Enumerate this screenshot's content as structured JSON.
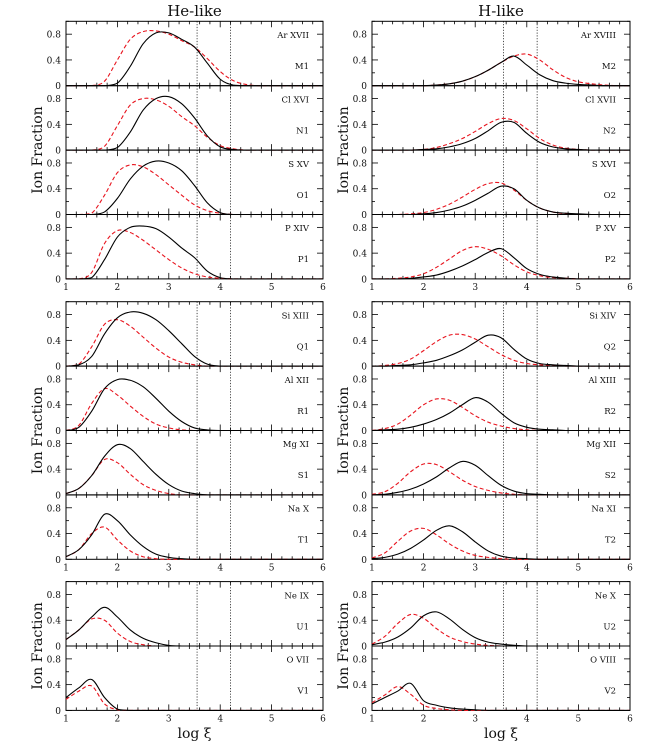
{
  "chart_data": {
    "type": "line",
    "xlabel": "log ξ",
    "ylabel": "Ion Fraction",
    "xlim": [
      1,
      6
    ],
    "ylim": [
      0,
      1
    ],
    "xticks": [
      "1",
      "2",
      "3",
      "4",
      "5",
      "6"
    ],
    "yticks": [
      "0",
      "0.4",
      "0.8"
    ],
    "vertical_dotted_lines": [
      3.55,
      4.2
    ],
    "series_styles": {
      "solid": "#000000",
      "dashed": "#e8141e"
    },
    "panel_groups": [
      4,
      4,
      2
    ],
    "x": [
      1,
      1.25,
      1.5,
      1.75,
      2,
      2.25,
      2.5,
      2.75,
      3,
      3.25,
      3.5,
      3.75,
      4,
      4.25,
      4.5,
      4.75,
      5,
      5.25,
      5.5,
      5.75,
      6
    ],
    "columns": [
      {
        "title": "He-like",
        "panels": [
          {
            "ion": "Ar XVII",
            "label": "M1",
            "solid": [
              0,
              0,
              0,
              0,
              0.04,
              0.3,
              0.65,
              0.82,
              0.82,
              0.72,
              0.6,
              0.35,
              0.1,
              0.01,
              0,
              0,
              0,
              0,
              0,
              0,
              0
            ],
            "dashed": [
              0,
              0,
              0,
              0.07,
              0.4,
              0.72,
              0.84,
              0.85,
              0.8,
              0.7,
              0.6,
              0.42,
              0.22,
              0.08,
              0.02,
              0,
              0,
              0,
              0,
              0,
              0
            ]
          },
          {
            "ion": "Cl XVI",
            "label": "N1",
            "solid": [
              0,
              0,
              0,
              0,
              0.04,
              0.28,
              0.62,
              0.8,
              0.83,
              0.72,
              0.5,
              0.22,
              0.05,
              0.01,
              0,
              0,
              0,
              0,
              0,
              0,
              0
            ],
            "dashed": [
              0,
              0,
              0,
              0.06,
              0.38,
              0.7,
              0.8,
              0.78,
              0.68,
              0.52,
              0.38,
              0.2,
              0.07,
              0.02,
              0,
              0,
              0,
              0,
              0,
              0,
              0
            ]
          },
          {
            "ion": "S XV",
            "label": "O1",
            "solid": [
              0,
              0,
              0,
              0.04,
              0.25,
              0.55,
              0.75,
              0.83,
              0.8,
              0.68,
              0.45,
              0.18,
              0.03,
              0,
              0,
              0,
              0,
              0,
              0,
              0,
              0
            ],
            "dashed": [
              0,
              0,
              0.02,
              0.3,
              0.65,
              0.77,
              0.74,
              0.62,
              0.46,
              0.3,
              0.15,
              0.06,
              0.02,
              0,
              0,
              0,
              0,
              0,
              0,
              0,
              0
            ]
          },
          {
            "ion": "P XIV",
            "label": "P1",
            "solid": [
              0,
              0,
              0.02,
              0.3,
              0.65,
              0.8,
              0.82,
              0.78,
              0.65,
              0.48,
              0.33,
              0.12,
              0.02,
              0,
              0,
              0,
              0,
              0,
              0,
              0,
              0
            ],
            "dashed": [
              0,
              0,
              0.1,
              0.55,
              0.75,
              0.72,
              0.6,
              0.45,
              0.3,
              0.17,
              0.08,
              0.03,
              0.01,
              0,
              0,
              0,
              0,
              0,
              0,
              0,
              0
            ]
          },
          {
            "ion": "Si XIII",
            "label": "Q1",
            "solid": [
              0,
              0.02,
              0.15,
              0.5,
              0.75,
              0.84,
              0.82,
              0.72,
              0.55,
              0.35,
              0.15,
              0.03,
              0,
              0,
              0,
              0,
              0,
              0,
              0,
              0,
              0
            ],
            "dashed": [
              0,
              0.03,
              0.3,
              0.65,
              0.72,
              0.62,
              0.45,
              0.28,
              0.14,
              0.06,
              0.02,
              0,
              0,
              0,
              0,
              0,
              0,
              0,
              0,
              0,
              0
            ]
          },
          {
            "ion": "Al XII",
            "label": "R1",
            "solid": [
              0,
              0.05,
              0.3,
              0.65,
              0.79,
              0.78,
              0.68,
              0.5,
              0.3,
              0.14,
              0.04,
              0.01,
              0,
              0,
              0,
              0,
              0,
              0,
              0,
              0,
              0
            ],
            "dashed": [
              0,
              0.08,
              0.42,
              0.65,
              0.55,
              0.38,
              0.22,
              0.1,
              0.04,
              0.01,
              0,
              0,
              0,
              0,
              0,
              0,
              0,
              0,
              0,
              0,
              0
            ]
          },
          {
            "ion": "Mg XI",
            "label": "S1",
            "solid": [
              0.02,
              0.1,
              0.3,
              0.6,
              0.78,
              0.72,
              0.52,
              0.32,
              0.16,
              0.06,
              0.02,
              0,
              0,
              0,
              0,
              0,
              0,
              0,
              0,
              0,
              0
            ],
            "dashed": [
              0.02,
              0.1,
              0.3,
              0.55,
              0.5,
              0.32,
              0.16,
              0.07,
              0.02,
              0,
              0,
              0,
              0,
              0,
              0,
              0,
              0,
              0,
              0,
              0,
              0
            ]
          },
          {
            "ion": "Na X",
            "label": "T1",
            "solid": [
              0.04,
              0.15,
              0.38,
              0.7,
              0.6,
              0.38,
              0.2,
              0.08,
              0.03,
              0.01,
              0,
              0,
              0,
              0,
              0,
              0,
              0,
              0,
              0,
              0,
              0
            ],
            "dashed": [
              0.04,
              0.15,
              0.4,
              0.5,
              0.3,
              0.13,
              0.04,
              0.01,
              0,
              0,
              0,
              0,
              0,
              0,
              0,
              0,
              0,
              0,
              0,
              0,
              0
            ]
          },
          {
            "ion": "Ne IX",
            "label": "U1",
            "solid": [
              0.1,
              0.25,
              0.45,
              0.6,
              0.45,
              0.25,
              0.12,
              0.05,
              0.01,
              0,
              0,
              0,
              0,
              0,
              0,
              0,
              0,
              0,
              0,
              0,
              0
            ],
            "dashed": [
              0.1,
              0.25,
              0.42,
              0.4,
              0.2,
              0.07,
              0.02,
              0,
              0,
              0,
              0,
              0,
              0,
              0,
              0,
              0,
              0,
              0,
              0,
              0,
              0
            ]
          },
          {
            "ion": "O VII",
            "label": "V1",
            "solid": [
              0.2,
              0.35,
              0.48,
              0.2,
              0.02,
              0,
              0,
              0,
              0,
              0,
              0,
              0,
              0,
              0,
              0,
              0,
              0,
              0,
              0,
              0,
              0
            ],
            "dashed": [
              0.17,
              0.3,
              0.38,
              0.1,
              0.01,
              0,
              0,
              0,
              0,
              0,
              0,
              0,
              0,
              0,
              0,
              0,
              0,
              0,
              0,
              0,
              0
            ]
          }
        ]
      },
      {
        "title": "H-like",
        "panels": [
          {
            "ion": "Ar XVIII",
            "label": "M2",
            "solid": [
              0,
              0,
              0,
              0,
              0,
              0.01,
              0.03,
              0.07,
              0.14,
              0.24,
              0.36,
              0.46,
              0.32,
              0.17,
              0.08,
              0.04,
              0.02,
              0.01,
              0,
              0,
              0
            ],
            "dashed": [
              0,
              0,
              0,
              0,
              0,
              0.01,
              0.03,
              0.07,
              0.14,
              0.24,
              0.36,
              0.46,
              0.49,
              0.4,
              0.25,
              0.13,
              0.06,
              0.03,
              0.01,
              0,
              0
            ]
          },
          {
            "ion": "Cl XVII",
            "label": "N2",
            "solid": [
              0,
              0,
              0,
              0,
              0.01,
              0.02,
              0.05,
              0.1,
              0.18,
              0.3,
              0.43,
              0.43,
              0.26,
              0.12,
              0.05,
              0.02,
              0.01,
              0,
              0,
              0,
              0
            ],
            "dashed": [
              0,
              0,
              0,
              0,
              0.01,
              0.04,
              0.1,
              0.18,
              0.29,
              0.41,
              0.49,
              0.46,
              0.33,
              0.18,
              0.08,
              0.03,
              0.01,
              0,
              0,
              0,
              0
            ]
          },
          {
            "ion": "S XVI",
            "label": "O2",
            "solid": [
              0,
              0,
              0,
              0,
              0.01,
              0.03,
              0.07,
              0.13,
              0.22,
              0.33,
              0.44,
              0.4,
              0.22,
              0.1,
              0.04,
              0.02,
              0.01,
              0,
              0,
              0,
              0
            ],
            "dashed": [
              0,
              0,
              0,
              0.01,
              0.03,
              0.08,
              0.16,
              0.27,
              0.39,
              0.48,
              0.49,
              0.38,
              0.22,
              0.1,
              0.04,
              0.01,
              0,
              0,
              0,
              0,
              0
            ]
          },
          {
            "ion": "P XV",
            "label": "P2",
            "solid": [
              0,
              0,
              0,
              0.01,
              0.03,
              0.06,
              0.12,
              0.2,
              0.3,
              0.41,
              0.47,
              0.33,
              0.16,
              0.07,
              0.03,
              0.01,
              0,
              0,
              0,
              0,
              0
            ],
            "dashed": [
              0,
              0,
              0.01,
              0.03,
              0.08,
              0.18,
              0.31,
              0.44,
              0.5,
              0.46,
              0.36,
              0.22,
              0.11,
              0.05,
              0.02,
              0.01,
              0,
              0,
              0,
              0,
              0
            ]
          },
          {
            "ion": "Si XIV",
            "label": "Q2",
            "solid": [
              0,
              0,
              0.01,
              0.02,
              0.05,
              0.09,
              0.16,
              0.25,
              0.37,
              0.48,
              0.44,
              0.26,
              0.11,
              0.04,
              0.02,
              0.01,
              0,
              0,
              0,
              0,
              0
            ],
            "dashed": [
              0,
              0.01,
              0.04,
              0.11,
              0.24,
              0.38,
              0.48,
              0.49,
              0.42,
              0.3,
              0.18,
              0.09,
              0.04,
              0.02,
              0.01,
              0,
              0,
              0,
              0,
              0,
              0
            ]
          },
          {
            "ion": "Al XIII",
            "label": "R2",
            "solid": [
              0,
              0.01,
              0.02,
              0.05,
              0.1,
              0.17,
              0.27,
              0.4,
              0.51,
              0.44,
              0.27,
              0.12,
              0.05,
              0.02,
              0.01,
              0,
              0,
              0,
              0,
              0,
              0
            ],
            "dashed": [
              0,
              0.03,
              0.1,
              0.24,
              0.4,
              0.49,
              0.47,
              0.36,
              0.23,
              0.13,
              0.07,
              0.03,
              0.01,
              0,
              0,
              0,
              0,
              0,
              0,
              0,
              0
            ]
          },
          {
            "ion": "Mg XII",
            "label": "S2",
            "solid": [
              0,
              0.01,
              0.04,
              0.09,
              0.17,
              0.28,
              0.42,
              0.52,
              0.46,
              0.3,
              0.15,
              0.06,
              0.02,
              0.01,
              0,
              0,
              0,
              0,
              0,
              0,
              0
            ],
            "dashed": [
              0.01,
              0.05,
              0.18,
              0.36,
              0.48,
              0.47,
              0.36,
              0.23,
              0.13,
              0.07,
              0.03,
              0.01,
              0,
              0,
              0,
              0,
              0,
              0,
              0,
              0,
              0
            ]
          },
          {
            "ion": "Na XI",
            "label": "T2",
            "solid": [
              0.01,
              0.03,
              0.08,
              0.17,
              0.3,
              0.45,
              0.52,
              0.43,
              0.27,
              0.13,
              0.05,
              0.02,
              0.01,
              0,
              0,
              0,
              0,
              0,
              0,
              0,
              0
            ],
            "dashed": [
              0.02,
              0.1,
              0.28,
              0.44,
              0.48,
              0.38,
              0.24,
              0.13,
              0.06,
              0.03,
              0.01,
              0,
              0,
              0,
              0,
              0,
              0,
              0,
              0,
              0,
              0
            ]
          },
          {
            "ion": "Ne X",
            "label": "U2",
            "solid": [
              0.02,
              0.06,
              0.14,
              0.28,
              0.47,
              0.53,
              0.42,
              0.26,
              0.13,
              0.06,
              0.03,
              0.01,
              0,
              0,
              0,
              0,
              0,
              0,
              0,
              0,
              0
            ],
            "dashed": [
              0.03,
              0.15,
              0.35,
              0.49,
              0.43,
              0.27,
              0.14,
              0.07,
              0.03,
              0.01,
              0,
              0,
              0,
              0,
              0,
              0,
              0,
              0,
              0,
              0,
              0
            ]
          },
          {
            "ion": "O VIII",
            "label": "V2",
            "solid": [
              0.1,
              0.2,
              0.3,
              0.42,
              0.15,
              0.08,
              0.04,
              0.02,
              0.01,
              0,
              0,
              0,
              0,
              0,
              0,
              0,
              0,
              0,
              0,
              0,
              0
            ],
            "dashed": [
              0.12,
              0.24,
              0.37,
              0.25,
              0.08,
              0.03,
              0.01,
              0,
              0,
              0,
              0,
              0,
              0,
              0,
              0,
              0,
              0,
              0,
              0,
              0,
              0
            ]
          }
        ]
      }
    ]
  }
}
